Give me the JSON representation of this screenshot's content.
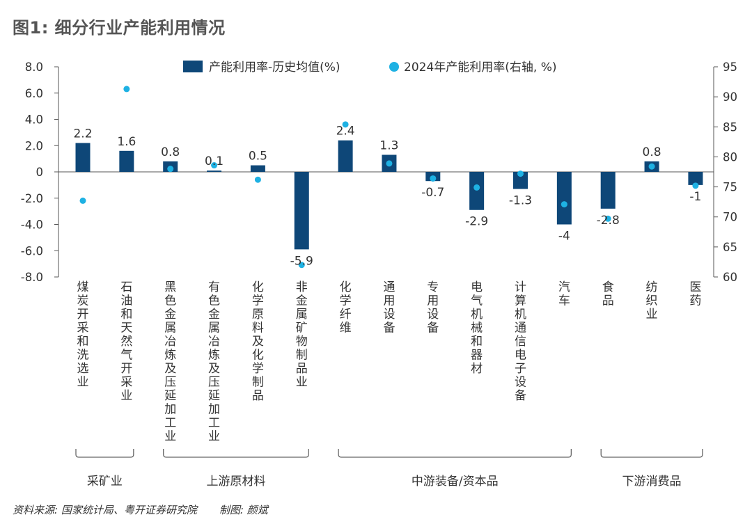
{
  "title": "图1: 细分行业产能利用情况",
  "footer": {
    "source": "资料来源: 国家统计局、粤开证券研究院",
    "maker": "制图: 颜斌"
  },
  "colors": {
    "bar": "#0E4778",
    "dot": "#1EB1E3",
    "axis": "#555555",
    "bracket": "#666666"
  },
  "chart_data": {
    "type": "bar",
    "categories": [
      "煤炭开采和洗选业",
      "石油和天然气开采业",
      "黑色金属冶炼及压延加工业",
      "有色金属冶炼及压延加工业",
      "化学原料及化学制品",
      "非金属矿物制品业",
      "化学纤维",
      "通用设备",
      "专用设备",
      "电气机械和器材",
      "计算机通信电子设备",
      "汽车",
      "食品",
      "纺织业",
      "医药"
    ],
    "series": [
      {
        "name": "产能利用率-历史均值(%)",
        "type": "bar",
        "axis": "left",
        "values": [
          2.2,
          1.6,
          0.8,
          0.1,
          0.5,
          -5.9,
          2.4,
          1.3,
          -0.7,
          -2.9,
          -1.3,
          -4,
          -2.8,
          0.8,
          -1
        ],
        "labels": [
          "2.2",
          "1.6",
          "0.8",
          "0.1",
          "0.5",
          "-5.9",
          "2.4",
          "1.3",
          "-0.7",
          "-2.9",
          "-1.3",
          "-4",
          "-2.8",
          "0.8",
          "-1"
        ]
      },
      {
        "name": "2024年产能利用率(右轴, %)",
        "type": "scatter",
        "axis": "right",
        "values": [
          72.7,
          91.3,
          78.0,
          78.6,
          76.2,
          62.0,
          85.4,
          78.9,
          76.4,
          74.9,
          77.2,
          72.1,
          69.7,
          78.4,
          75.2
        ]
      }
    ],
    "y_left": {
      "min": -8,
      "max": 8,
      "ticks": [
        "8.0",
        "6.0",
        "4.0",
        "2.0",
        "0",
        "-2.0",
        "-4.0",
        "-6.0",
        "-8.0"
      ]
    },
    "y_right": {
      "min": 60,
      "max": 95,
      "ticks": [
        "95",
        "90",
        "85",
        "80",
        "75",
        "70",
        "65",
        "60"
      ]
    },
    "groups": [
      {
        "label": "采矿业",
        "from": 0,
        "to": 1
      },
      {
        "label": "上游原材料",
        "from": 2,
        "to": 5
      },
      {
        "label": "中游装备/资本品",
        "from": 6,
        "to": 11
      },
      {
        "label": "下游消费品",
        "from": 12,
        "to": 14
      }
    ],
    "legend_position": "top-center",
    "grid": false
  }
}
